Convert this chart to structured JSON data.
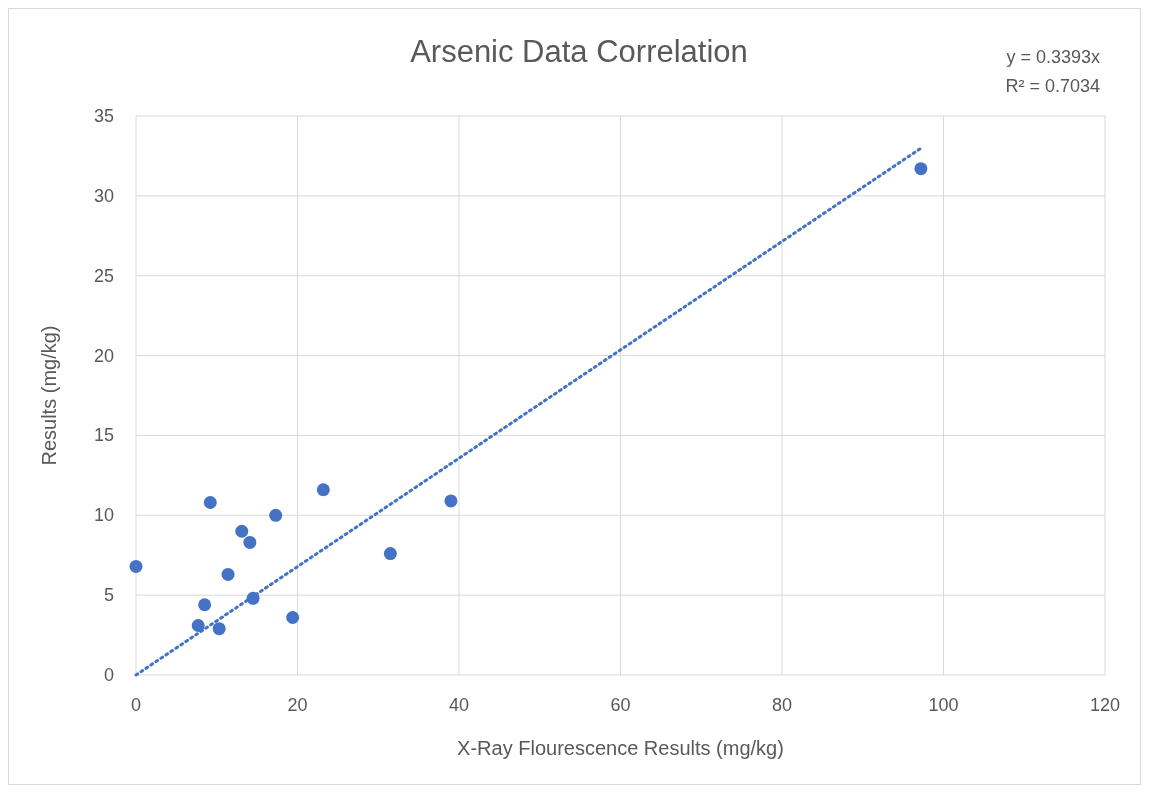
{
  "chart_data": {
    "type": "scatter",
    "title": "Arsenic Data Correlation",
    "xlabel": "X-Ray Flourescence Results (mg/kg)",
    "ylabel": "Results (mg/kg)",
    "annotations": [
      "y = 0.3393x",
      "R² = 0.7034"
    ],
    "xlim": [
      0,
      120
    ],
    "xticks": [
      0,
      20,
      40,
      60,
      80,
      100,
      120
    ],
    "ylim": [
      0,
      35
    ],
    "yticks": [
      0,
      5,
      10,
      15,
      20,
      25,
      30,
      35
    ],
    "grid": true,
    "series": [
      {
        "color": "#4472c4",
        "marker": "circle",
        "x": [
          0,
          7.7,
          8.5,
          9.2,
          10.3,
          11.4,
          13.1,
          14.1,
          14.5,
          17.3,
          19.4,
          23.2,
          31.5,
          39.0,
          97.2
        ],
        "values": [
          6.8,
          3.1,
          4.4,
          10.8,
          2.9,
          6.3,
          9.0,
          8.3,
          4.8,
          10.0,
          3.6,
          11.6,
          7.6,
          10.9,
          31.7
        ]
      },
      {
        "type": "line",
        "color": "#4472c4",
        "line_style": "dotted",
        "x": [
          0,
          97.2
        ],
        "values": [
          0,
          32.98
        ]
      }
    ]
  }
}
